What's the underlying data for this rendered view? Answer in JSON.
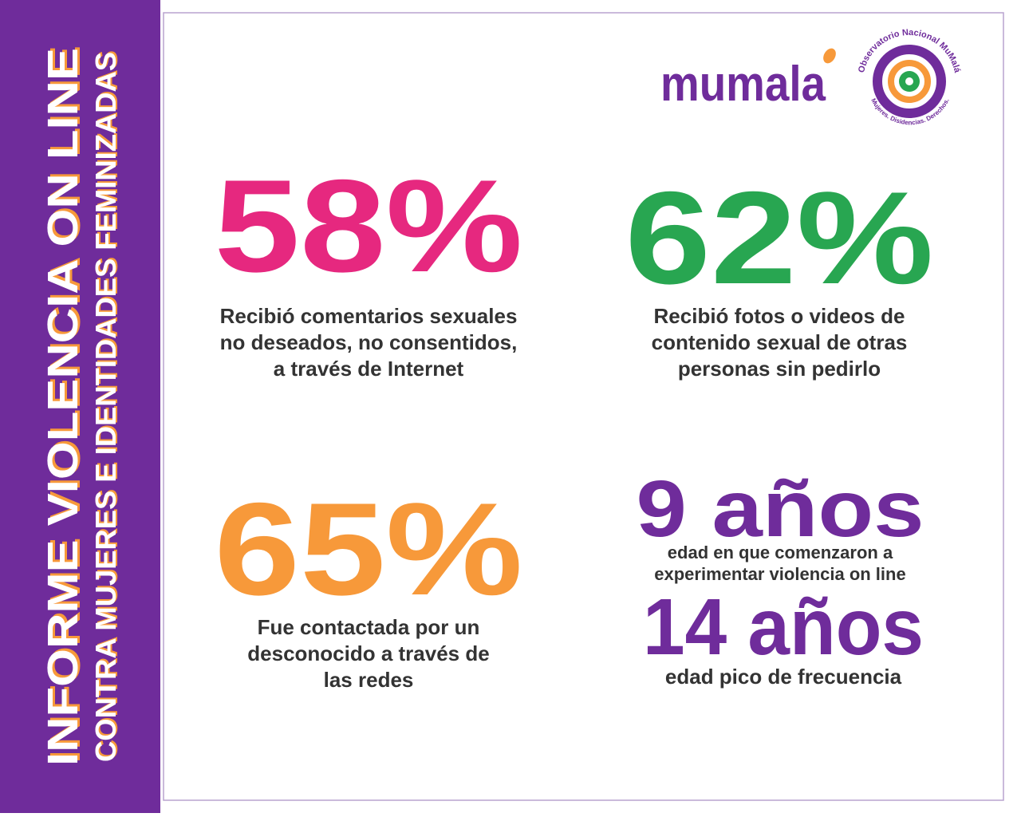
{
  "sidebar": {
    "title": "INFORME VIOLENCIA ON LINE",
    "subtitle": "CONTRA MUJERES E IDENTIDADES FEMINIZADAS"
  },
  "logos": {
    "brand": "mumala",
    "observatory": {
      "name": "Observatorio Nacional MuMalá",
      "tagline": "Mujeres. Disidencias. Derechos."
    }
  },
  "stats": [
    {
      "value": "58%",
      "color": "#e6287f",
      "description": [
        "Recibió comentarios sexuales",
        "no deseados, no consentidos,",
        "a través de Internet"
      ]
    },
    {
      "value": "62%",
      "color": "#28a651",
      "description": [
        "Recibió fotos o videos de",
        "contenido sexual de otras",
        "personas sin pedirlo"
      ]
    },
    {
      "value": "65%",
      "color": "#f7993a",
      "description": [
        "Fue contactada por un",
        "desconocido a través de",
        "las redes"
      ]
    },
    {
      "value": "9 años",
      "color": "#6f2c9b",
      "description": [
        "edad en que comenzaron a",
        "experimentar violencia on line"
      ]
    },
    {
      "value": "14 años",
      "color": "#6f2c9b",
      "description": [
        "edad pico de frecuencia"
      ]
    }
  ]
}
